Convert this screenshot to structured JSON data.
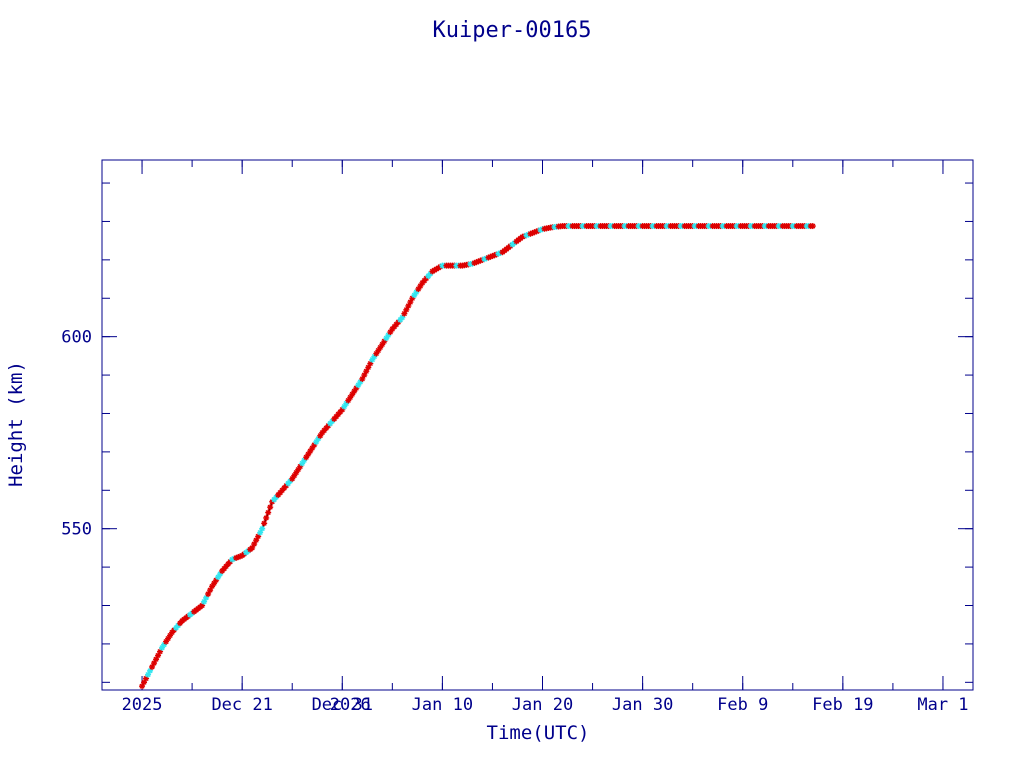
{
  "chart_data": {
    "type": "scatter",
    "title": "Kuiper-00165",
    "xlabel": "Time(UTC)",
    "ylabel": "Height (km)",
    "x_range": [
      "2025-12-07",
      "2026-03-04"
    ],
    "ylim": [
      508,
      646
    ],
    "y_major_ticks": [
      550,
      600
    ],
    "y_minor_step": 10,
    "x_major_ticks": [
      {
        "date": "2025-12-11",
        "label": "2025"
      },
      {
        "date": "2025-12-21",
        "label": "Dec 21"
      },
      {
        "date": "2025-12-31",
        "label": "Dec 31"
      },
      {
        "date": "2026-01-10",
        "label": "Jan 10"
      },
      {
        "date": "2026-01-20",
        "label": "Jan 20"
      },
      {
        "date": "2026-01-30",
        "label": "Jan 30"
      },
      {
        "date": "2026-02-09",
        "label": "Feb  9"
      },
      {
        "date": "2026-02-19",
        "label": "Feb 19"
      },
      {
        "date": "2026-03-01",
        "label": "Mar  1"
      }
    ],
    "extra_x_labels": [
      {
        "date": "2026-01-01",
        "label": "2026"
      }
    ],
    "x_minor_step_days": 5,
    "grid": false,
    "colors": {
      "axes": "#00008b",
      "text": "#00008b",
      "line": "#000000",
      "series_red": "#dd0000",
      "series_cyan": "#33e6f0"
    },
    "series": [
      {
        "values": [
          [
            "2025-12-11",
            509
          ],
          [
            "2025-12-12",
            514
          ],
          [
            "2025-12-13",
            519
          ],
          [
            "2025-12-14",
            523
          ],
          [
            "2025-12-15",
            526
          ],
          [
            "2025-12-16",
            528
          ],
          [
            "2025-12-17",
            530
          ],
          [
            "2025-12-18",
            535
          ],
          [
            "2025-12-19",
            539
          ],
          [
            "2025-12-20",
            542
          ],
          [
            "2025-12-21",
            543
          ],
          [
            "2025-12-22",
            545
          ],
          [
            "2025-12-23",
            550
          ],
          [
            "2025-12-24",
            557
          ],
          [
            "2025-12-25",
            560
          ],
          [
            "2025-12-26",
            563
          ],
          [
            "2025-12-27",
            567
          ],
          [
            "2025-12-28",
            571
          ],
          [
            "2025-12-29",
            575
          ],
          [
            "2025-12-30",
            578
          ],
          [
            "2025-12-31",
            581
          ],
          [
            "2026-01-01",
            585
          ],
          [
            "2026-01-02",
            589
          ],
          [
            "2026-01-03",
            594
          ],
          [
            "2026-01-04",
            598
          ],
          [
            "2026-01-05",
            602
          ],
          [
            "2026-01-06",
            605
          ],
          [
            "2026-01-07",
            610
          ],
          [
            "2026-01-08",
            614
          ],
          [
            "2026-01-09",
            617
          ],
          [
            "2026-01-10",
            618.5
          ],
          [
            "2026-01-11",
            618.5
          ],
          [
            "2026-01-12",
            618.5
          ],
          [
            "2026-01-13",
            619
          ],
          [
            "2026-01-14",
            620
          ],
          [
            "2026-01-15",
            621
          ],
          [
            "2026-01-16",
            622
          ],
          [
            "2026-01-17",
            624
          ],
          [
            "2026-01-18",
            626
          ],
          [
            "2026-01-19",
            627
          ],
          [
            "2026-01-20",
            628
          ],
          [
            "2026-01-21",
            628.5
          ],
          [
            "2026-01-22",
            628.8
          ],
          [
            "2026-01-23",
            628.8
          ],
          [
            "2026-01-25",
            628.8
          ],
          [
            "2026-01-27",
            628.8
          ],
          [
            "2026-01-29",
            628.8
          ],
          [
            "2026-01-31",
            628.8
          ],
          [
            "2026-02-02",
            628.8
          ],
          [
            "2026-02-04",
            628.8
          ],
          [
            "2026-02-06",
            628.8
          ],
          [
            "2026-02-08",
            628.8
          ],
          [
            "2026-02-10",
            628.8
          ],
          [
            "2026-02-12",
            628.8
          ],
          [
            "2026-02-14",
            628.8
          ],
          [
            "2026-02-16",
            628.8
          ]
        ]
      }
    ]
  }
}
